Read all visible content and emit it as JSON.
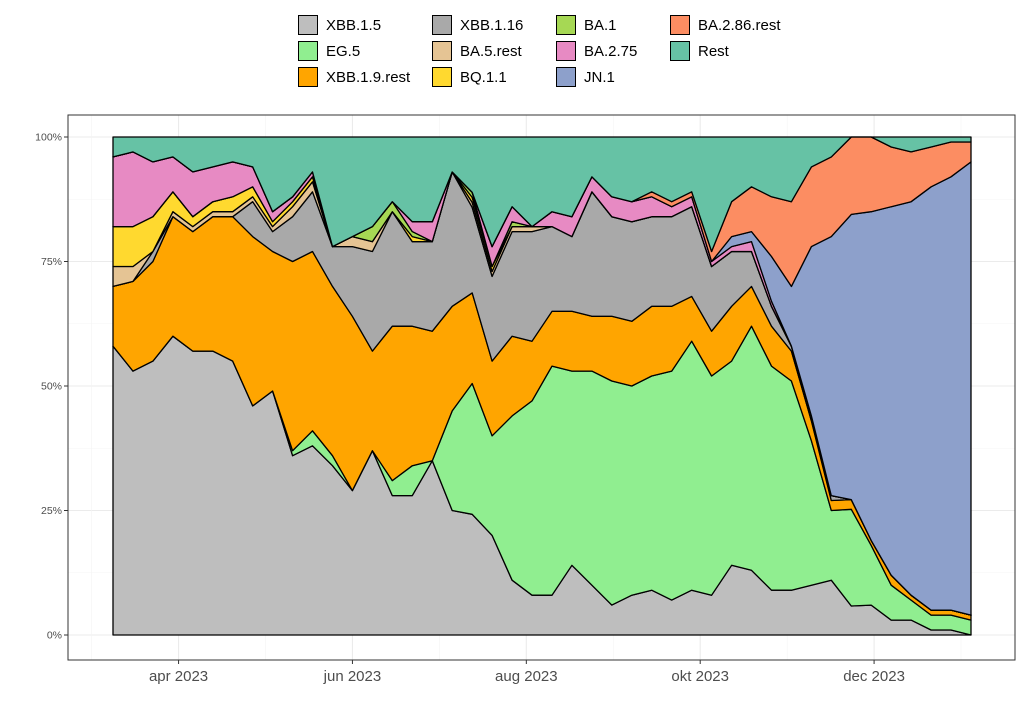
{
  "chart_data": {
    "type": "area",
    "stacked": true,
    "normalized": true,
    "legend_position": "top",
    "grid": true,
    "ylim": [
      0,
      1
    ],
    "y_ticks": [
      0,
      0.25,
      0.5,
      0.75,
      1
    ],
    "y_tick_labels": [
      "0%",
      "25%",
      "50%",
      "75%",
      "100%"
    ],
    "x_tick_positions": [
      "2023-04-01",
      "2023-06-01",
      "2023-08-01",
      "2023-10-01",
      "2023-12-01"
    ],
    "x_tick_labels": [
      "apr 2023",
      "jun 2023",
      "aug 2023",
      "okt 2023",
      "dec 2023"
    ],
    "x": [
      "2023-03-09",
      "2023-03-16",
      "2023-03-23",
      "2023-03-30",
      "2023-04-06",
      "2023-04-13",
      "2023-04-20",
      "2023-04-27",
      "2023-05-04",
      "2023-05-11",
      "2023-05-18",
      "2023-05-25",
      "2023-06-01",
      "2023-06-08",
      "2023-06-15",
      "2023-06-22",
      "2023-06-29",
      "2023-07-06",
      "2023-07-13",
      "2023-07-20",
      "2023-07-27",
      "2023-08-03",
      "2023-08-10",
      "2023-08-17",
      "2023-08-24",
      "2023-08-31",
      "2023-09-07",
      "2023-09-14",
      "2023-09-21",
      "2023-09-28",
      "2023-10-05",
      "2023-10-12",
      "2023-10-19",
      "2023-10-26",
      "2023-11-02",
      "2023-11-09",
      "2023-11-16",
      "2023-11-23",
      "2023-11-30",
      "2023-12-07",
      "2023-12-14",
      "2023-12-21",
      "2023-12-28",
      "2024-01-04"
    ],
    "series": [
      {
        "name": "XBB.1.5",
        "color": "#BEBEBE",
        "values": [
          0.58,
          0.53,
          0.55,
          0.6,
          0.57,
          0.57,
          0.55,
          0.46,
          0.49,
          0.36,
          0.38,
          0.34,
          0.29,
          0.37,
          0.28,
          0.28,
          0.35,
          0.25,
          0.24,
          0.2,
          0.11,
          0.08,
          0.08,
          0.14,
          0.1,
          0.06,
          0.08,
          0.09,
          0.07,
          0.09,
          0.08,
          0.14,
          0.13,
          0.09,
          0.09,
          0.1,
          0.11,
          0.06,
          0.06,
          0.03,
          0.03,
          0.01,
          0.01,
          0.0
        ]
      },
      {
        "name": "EG.5",
        "color": "#90EE90",
        "values": [
          0.0,
          0.0,
          0.0,
          0.0,
          0.0,
          0.0,
          0.0,
          0.0,
          0.0,
          0.01,
          0.03,
          0.02,
          0.0,
          0.0,
          0.03,
          0.06,
          0.0,
          0.2,
          0.26,
          0.2,
          0.33,
          0.39,
          0.46,
          0.39,
          0.43,
          0.45,
          0.42,
          0.43,
          0.46,
          0.5,
          0.44,
          0.41,
          0.49,
          0.45,
          0.42,
          0.29,
          0.14,
          0.2,
          0.12,
          0.07,
          0.04,
          0.03,
          0.03,
          0.03
        ]
      },
      {
        "name": "XBB.1.9.rest",
        "color": "#FFA500",
        "values": [
          0.12,
          0.18,
          0.2,
          0.24,
          0.24,
          0.27,
          0.29,
          0.34,
          0.28,
          0.38,
          0.36,
          0.34,
          0.35,
          0.2,
          0.31,
          0.28,
          0.26,
          0.21,
          0.18,
          0.15,
          0.16,
          0.12,
          0.11,
          0.12,
          0.11,
          0.13,
          0.13,
          0.14,
          0.13,
          0.09,
          0.09,
          0.11,
          0.08,
          0.08,
          0.06,
          0.04,
          0.02,
          0.02,
          0.01,
          0.02,
          0.01,
          0.01,
          0.01,
          0.01
        ]
      },
      {
        "name": "XBB.1.16",
        "color": "#A9A9A9",
        "values": [
          0.0,
          0.0,
          0.02,
          0.0,
          0.0,
          0.0,
          0.0,
          0.07,
          0.04,
          0.09,
          0.12,
          0.08,
          0.14,
          0.2,
          0.23,
          0.17,
          0.18,
          0.27,
          0.17,
          0.17,
          0.21,
          0.22,
          0.17,
          0.15,
          0.25,
          0.2,
          0.2,
          0.18,
          0.18,
          0.18,
          0.13,
          0.11,
          0.07,
          0.04,
          0.01,
          0.01,
          0.01,
          0.0,
          0.0,
          0.0,
          0.0,
          0.0,
          0.0,
          0.0
        ]
      },
      {
        "name": "BA.5.rest",
        "color": "#E5C494",
        "values": [
          0.04,
          0.03,
          0.0,
          0.01,
          0.01,
          0.01,
          0.01,
          0.01,
          0.01,
          0.02,
          0.02,
          0.0,
          0.02,
          0.02,
          0.0,
          0.0,
          0.0,
          0.0,
          0.01,
          0.01,
          0.01,
          0.01,
          0.0,
          0.0,
          0.0,
          0.0,
          0.0,
          0.0,
          0.0,
          0.0,
          0.0,
          0.0,
          0.0,
          0.0,
          0.0,
          0.0,
          0.0,
          0.0,
          0.0,
          0.0,
          0.0,
          0.0,
          0.0,
          0.0
        ]
      },
      {
        "name": "BQ.1.1",
        "color": "#FFD92F",
        "values": [
          0.08,
          0.08,
          0.07,
          0.04,
          0.02,
          0.02,
          0.03,
          0.02,
          0.01,
          0.01,
          0.01,
          0.0,
          0.0,
          0.0,
          0.0,
          0.01,
          0.0,
          0.0,
          0.01,
          0.01,
          0.0,
          0.0,
          0.0,
          0.0,
          0.0,
          0.0,
          0.0,
          0.0,
          0.0,
          0.0,
          0.0,
          0.0,
          0.0,
          0.0,
          0.0,
          0.0,
          0.0,
          0.0,
          0.0,
          0.0,
          0.0,
          0.0,
          0.0,
          0.0
        ]
      },
      {
        "name": "BA.1",
        "color": "#A6D854",
        "values": [
          0.0,
          0.0,
          0.0,
          0.0,
          0.0,
          0.0,
          0.0,
          0.0,
          0.0,
          0.0,
          0.0,
          0.0,
          0.0,
          0.03,
          0.02,
          0.01,
          0.0,
          0.0,
          0.01,
          0.0,
          0.01,
          0.0,
          0.0,
          0.0,
          0.0,
          0.0,
          0.0,
          0.0,
          0.0,
          0.0,
          0.0,
          0.0,
          0.0,
          0.0,
          0.0,
          0.0,
          0.0,
          0.0,
          0.0,
          0.0,
          0.0,
          0.0,
          0.0,
          0.0
        ]
      },
      {
        "name": "BA.2.75",
        "color": "#E78AC3",
        "values": [
          0.14,
          0.15,
          0.11,
          0.07,
          0.09,
          0.07,
          0.07,
          0.04,
          0.02,
          0.01,
          0.01,
          0.0,
          0.0,
          0.0,
          0.0,
          0.02,
          0.04,
          0.0,
          0.0,
          0.04,
          0.03,
          0.0,
          0.03,
          0.04,
          0.03,
          0.04,
          0.04,
          0.04,
          0.02,
          0.02,
          0.01,
          0.01,
          0.02,
          0.01,
          0.0,
          0.0,
          0.0,
          0.0,
          0.0,
          0.0,
          0.0,
          0.0,
          0.0,
          0.0
        ]
      },
      {
        "name": "JN.1",
        "color": "#8DA0CB",
        "values": [
          0.0,
          0.0,
          0.0,
          0.0,
          0.0,
          0.0,
          0.0,
          0.0,
          0.0,
          0.0,
          0.0,
          0.0,
          0.0,
          0.0,
          0.0,
          0.0,
          0.0,
          0.0,
          0.0,
          0.0,
          0.0,
          0.0,
          0.0,
          0.0,
          0.0,
          0.0,
          0.0,
          0.0,
          0.0,
          0.0,
          0.0,
          0.02,
          0.02,
          0.09,
          0.12,
          0.34,
          0.52,
          0.59,
          0.66,
          0.74,
          0.79,
          0.85,
          0.87,
          0.91
        ]
      },
      {
        "name": "BA.2.86.rest",
        "color": "#FC8D62",
        "values": [
          0.0,
          0.0,
          0.0,
          0.0,
          0.0,
          0.0,
          0.0,
          0.0,
          0.0,
          0.0,
          0.0,
          0.0,
          0.0,
          0.0,
          0.0,
          0.0,
          0.0,
          0.0,
          0.0,
          0.0,
          0.0,
          0.0,
          0.0,
          0.0,
          0.0,
          0.0,
          0.0,
          0.01,
          0.01,
          0.01,
          0.02,
          0.07,
          0.09,
          0.12,
          0.17,
          0.16,
          0.16,
          0.16,
          0.15,
          0.12,
          0.1,
          0.08,
          0.07,
          0.04
        ]
      },
      {
        "name": "Rest",
        "color": "#66C2A5",
        "values": [
          0.04,
          0.03,
          0.05,
          0.04,
          0.07,
          0.06,
          0.05,
          0.06,
          0.15,
          0.12,
          0.07,
          0.22,
          0.2,
          0.18,
          0.13,
          0.17,
          0.17,
          0.07,
          0.11,
          0.22,
          0.14,
          0.18,
          0.15,
          0.16,
          0.08,
          0.12,
          0.13,
          0.11,
          0.13,
          0.11,
          0.23,
          0.13,
          0.1,
          0.12,
          0.13,
          0.06,
          0.04,
          0.0,
          0.0,
          0.02,
          0.03,
          0.02,
          0.01,
          0.01
        ]
      }
    ]
  },
  "legend": {
    "items": [
      {
        "label": "XBB.1.5",
        "color": "#BEBEBE"
      },
      {
        "label": "EG.5",
        "color": "#90EE90"
      },
      {
        "label": "XBB.1.9.rest",
        "color": "#FFA500"
      },
      {
        "label": "XBB.1.16",
        "color": "#A9A9A9"
      },
      {
        "label": "BA.5.rest",
        "color": "#E5C494"
      },
      {
        "label": "BQ.1.1",
        "color": "#FFD92F"
      },
      {
        "label": "BA.1",
        "color": "#A6D854"
      },
      {
        "label": "BA.2.75",
        "color": "#E78AC3"
      },
      {
        "label": "JN.1",
        "color": "#8DA0CB"
      },
      {
        "label": "BA.2.86.rest",
        "color": "#FC8D62"
      },
      {
        "label": "Rest",
        "color": "#66C2A5"
      }
    ]
  }
}
